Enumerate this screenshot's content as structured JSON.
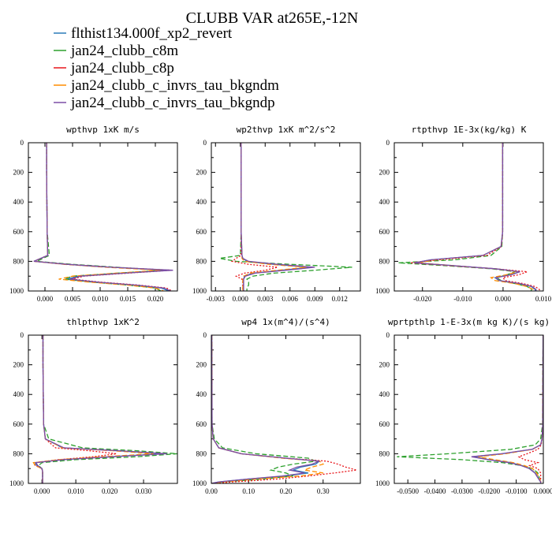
{
  "figure": {
    "title": "CLUBB VAR at265E,-12N"
  },
  "legend": [
    {
      "name": "flthist134.000f_xp2_revert",
      "color": "#2b7bb9"
    },
    {
      "name": "jan24_clubb_c8m",
      "color": "#2ca02c"
    },
    {
      "name": "jan24_clubb_c8p",
      "color": "#e8161b"
    },
    {
      "name": "jan24_clubb_c_invrs_tau_bkgndm",
      "color": "#ff8c00"
    },
    {
      "name": "jan24_clubb_c_invrs_tau_bkgndp",
      "color": "#7b4ea6"
    }
  ],
  "chart_data": [
    {
      "type": "line",
      "title": "wpthvp  1xK m/s",
      "ylim": [
        1000,
        0
      ],
      "yticks": [
        "0",
        "200",
        "400",
        "600",
        "800",
        "1000"
      ],
      "xlim": [
        -0.003,
        0.024
      ],
      "xticks": [
        {
          "v": 0,
          "l": "0.000"
        },
        {
          "v": 0.005,
          "l": "0.005"
        },
        {
          "v": 0.01,
          "l": "0.010"
        },
        {
          "v": 0.015,
          "l": "0.015"
        },
        {
          "v": 0.02,
          "l": "0.020"
        }
      ],
      "y": [
        0,
        200,
        600,
        760,
        800,
        820,
        840,
        860,
        880,
        900,
        920,
        940,
        960,
        980,
        1000
      ],
      "series": [
        {
          "values": [
            0.0003,
            0.0003,
            0.0004,
            0.0005,
            -0.002,
            0.004,
            0.012,
            0.0225,
            0.014,
            0.006,
            0.004,
            0.009,
            0.016,
            0.021,
            0.0225
          ]
        },
        {
          "values": [
            0.0003,
            0.0003,
            0.0004,
            0.0008,
            -0.0015,
            0.005,
            0.013,
            0.0215,
            0.013,
            0.005,
            0.0035,
            0.0085,
            0.015,
            0.02,
            0.021
          ]
        },
        {
          "values": [
            0.0003,
            0.0003,
            0.0004,
            0.0005,
            -0.002,
            0.004,
            0.012,
            0.023,
            0.015,
            0.007,
            0.005,
            0.01,
            0.017,
            0.022,
            0.023
          ]
        },
        {
          "values": [
            0.0003,
            0.0003,
            0.0004,
            0.0005,
            -0.002,
            0.0035,
            0.011,
            0.021,
            0.013,
            0.005,
            0.0025,
            0.008,
            0.015,
            0.02,
            0.0215
          ]
        },
        {
          "values": [
            0.0003,
            0.0003,
            0.0004,
            0.0005,
            -0.002,
            0.004,
            0.012,
            0.0232,
            0.0145,
            0.0065,
            0.0045,
            0.0095,
            0.0165,
            0.0215,
            0.0228
          ]
        }
      ]
    },
    {
      "type": "line",
      "title": "wp2thvp  1xK m^2/s^2",
      "ylim": [
        1000,
        0
      ],
      "yticks": [
        "0",
        "200",
        "400",
        "600",
        "800",
        "1000"
      ],
      "xlim": [
        -0.0035,
        0.0145
      ],
      "xticks": [
        {
          "v": -0.003,
          "l": "-0.003"
        },
        {
          "v": 0,
          "l": "0.000"
        },
        {
          "v": 0.003,
          "l": "0.003"
        },
        {
          "v": 0.006,
          "l": "0.006"
        },
        {
          "v": 0.009,
          "l": "0.009"
        },
        {
          "v": 0.012,
          "l": "0.012"
        }
      ],
      "y": [
        0,
        200,
        600,
        760,
        780,
        800,
        820,
        840,
        860,
        880,
        900,
        920,
        940,
        960,
        980,
        1000
      ],
      "series": [
        {
          "values": [
            0.0001,
            0.0001,
            0.0001,
            0.0002,
            0.0003,
            0.0008,
            0.004,
            0.0085,
            0.005,
            0.0015,
            0.0005,
            0.0004,
            0.0004,
            0.0004,
            0.0004,
            0.0004
          ]
        },
        {
          "values": [
            0.0001,
            0.0001,
            0.0001,
            0.0,
            -0.0025,
            -0.0005,
            0.006,
            0.0135,
            0.009,
            0.004,
            0.0015,
            0.0008,
            0.001,
            0.001,
            0.0008,
            0.0008
          ]
        },
        {
          "values": [
            0.0001,
            0.0001,
            0.0001,
            0.0001,
            -0.0005,
            -0.001,
            0.001,
            0.0045,
            0.003,
            0.0005,
            -0.0005,
            0.0002,
            0.0003,
            0.0003,
            0.0003,
            0.0003
          ]
        },
        {
          "values": [
            0.0001,
            0.0001,
            0.0001,
            0.0002,
            0.0002,
            0.0005,
            0.0035,
            0.008,
            0.0045,
            0.0012,
            0.0004,
            0.0003,
            0.0003,
            0.0003,
            0.0003,
            0.0003
          ]
        },
        {
          "values": [
            0.0001,
            0.0001,
            0.0001,
            0.0002,
            0.0003,
            0.001,
            0.0045,
            0.009,
            0.0055,
            0.0018,
            0.0006,
            0.0004,
            0.0004,
            0.0004,
            0.0004,
            0.0004
          ]
        }
      ]
    },
    {
      "type": "line",
      "title": "rtpthvp   1E-3x(kg/kg) K",
      "ylim": [
        1000,
        0
      ],
      "yticks": [
        "0",
        "200",
        "400",
        "600",
        "800",
        "1000"
      ],
      "xlim": [
        -0.027,
        0.01
      ],
      "xticks": [
        {
          "v": -0.02,
          "l": "-0.020"
        },
        {
          "v": -0.01,
          "l": "-0.010"
        },
        {
          "v": 0,
          "l": "0.000"
        },
        {
          "v": 0.01,
          "l": "0.010"
        }
      ],
      "y": [
        0,
        200,
        600,
        700,
        760,
        790,
        810,
        830,
        850,
        870,
        890,
        910,
        930,
        950,
        970,
        990,
        1000
      ],
      "series": [
        {
          "values": [
            -0.0001,
            -0.0001,
            -0.0001,
            -0.0005,
            -0.005,
            -0.018,
            -0.022,
            -0.012,
            -0.002,
            0.004,
            0.002,
            -0.002,
            -0.001,
            0.004,
            0.007,
            0.008,
            0.008
          ]
        },
        {
          "values": [
            -0.0001,
            -0.0001,
            -0.0001,
            -0.0003,
            -0.003,
            -0.012,
            -0.026,
            -0.014,
            -0.003,
            0.003,
            0.001,
            -0.0015,
            -0.0005,
            0.003,
            0.006,
            0.007,
            0.007
          ]
        },
        {
          "values": [
            -0.0001,
            -0.0001,
            -0.0001,
            -0.0004,
            -0.004,
            -0.016,
            -0.023,
            -0.013,
            -0.002,
            0.006,
            0.004,
            0.0,
            0.0005,
            0.005,
            0.008,
            0.009,
            0.0095
          ]
        },
        {
          "values": [
            -0.0001,
            -0.0001,
            -0.0001,
            -0.0005,
            -0.005,
            -0.017,
            -0.021,
            -0.012,
            -0.002,
            0.0035,
            0.001,
            -0.003,
            -0.002,
            0.003,
            0.006,
            0.0075,
            0.0075
          ]
        },
        {
          "values": [
            -0.0001,
            -0.0001,
            -0.0001,
            -0.0005,
            -0.005,
            -0.018,
            -0.022,
            -0.012,
            -0.002,
            0.0042,
            0.0022,
            -0.0018,
            -0.0008,
            0.0042,
            0.0072,
            0.0082,
            0.0082
          ]
        }
      ]
    },
    {
      "type": "line",
      "title": "thlpthvp   1xK^2",
      "ylim": [
        1000,
        0
      ],
      "yticks": [
        "0",
        "200",
        "400",
        "600",
        "800",
        "1000"
      ],
      "xlim": [
        -0.004,
        0.04
      ],
      "xticks": [
        {
          "v": 0,
          "l": "0.000"
        },
        {
          "v": 0.01,
          "l": "0.010"
        },
        {
          "v": 0.02,
          "l": "0.020"
        },
        {
          "v": 0.03,
          "l": "0.030"
        }
      ],
      "y": [
        0,
        200,
        600,
        700,
        760,
        780,
        800,
        820,
        840,
        860,
        880,
        900,
        920,
        940,
        960,
        980,
        1000
      ],
      "series": [
        {
          "values": [
            0.0003,
            0.0003,
            0.0005,
            0.001,
            0.006,
            0.022,
            0.036,
            0.02,
            0.006,
            -0.002,
            -0.0015,
            0.0,
            0.0002,
            0.0002,
            0.0002,
            0.0002,
            0.0002
          ]
        },
        {
          "values": [
            0.0003,
            0.0003,
            0.0005,
            0.002,
            0.012,
            0.028,
            0.04,
            0.028,
            0.01,
            0.0,
            -0.001,
            0.0,
            0.0002,
            0.0002,
            0.0002,
            0.0002,
            0.0002
          ]
        },
        {
          "values": [
            0.0003,
            0.0003,
            0.0005,
            0.001,
            0.004,
            0.014,
            0.022,
            0.015,
            0.005,
            -0.002,
            -0.002,
            0.0,
            0.0002,
            0.0002,
            0.0002,
            0.0002,
            0.0002
          ]
        },
        {
          "values": [
            0.0003,
            0.0003,
            0.0005,
            0.001,
            0.006,
            0.021,
            0.033,
            0.018,
            0.005,
            -0.0025,
            -0.002,
            0.0,
            0.0002,
            0.0002,
            0.0002,
            0.0002,
            0.0002
          ]
        },
        {
          "values": [
            0.0003,
            0.0003,
            0.0005,
            0.001,
            0.0065,
            0.023,
            0.037,
            0.021,
            0.0065,
            -0.0018,
            -0.0012,
            0.0,
            0.0002,
            0.0002,
            0.0002,
            0.0002,
            0.0002
          ]
        }
      ]
    },
    {
      "type": "line",
      "title": "wp4   1x(m^4)/(s^4)",
      "ylim": [
        1000,
        0
      ],
      "yticks": [
        "0",
        "200",
        "400",
        "600",
        "800",
        "1000"
      ],
      "xlim": [
        0,
        0.4
      ],
      "xticks": [
        {
          "v": 0,
          "l": "0.00"
        },
        {
          "v": 0.1,
          "l": "0.10"
        },
        {
          "v": 0.2,
          "l": "0.20"
        },
        {
          "v": 0.3,
          "l": "0.30"
        }
      ],
      "y": [
        0,
        600,
        700,
        760,
        800,
        830,
        850,
        870,
        890,
        910,
        930,
        950,
        970,
        990,
        1000
      ],
      "series": [
        {
          "values": [
            0.001,
            0.002,
            0.005,
            0.02,
            0.08,
            0.2,
            0.29,
            0.28,
            0.24,
            0.22,
            0.26,
            0.2,
            0.1,
            0.02,
            0.0
          ]
        },
        {
          "values": [
            0.001,
            0.002,
            0.008,
            0.03,
            0.12,
            0.26,
            0.28,
            0.22,
            0.18,
            0.16,
            0.2,
            0.22,
            0.14,
            0.03,
            0.0
          ]
        },
        {
          "values": [
            0.001,
            0.002,
            0.005,
            0.02,
            0.08,
            0.2,
            0.31,
            0.34,
            0.36,
            0.39,
            0.33,
            0.26,
            0.18,
            0.06,
            0.0
          ]
        },
        {
          "values": [
            0.001,
            0.002,
            0.005,
            0.02,
            0.08,
            0.19,
            0.29,
            0.3,
            0.27,
            0.25,
            0.3,
            0.24,
            0.12,
            0.03,
            0.0
          ]
        },
        {
          "values": [
            0.001,
            0.002,
            0.005,
            0.02,
            0.08,
            0.2,
            0.29,
            0.27,
            0.23,
            0.21,
            0.25,
            0.19,
            0.1,
            0.02,
            0.0
          ]
        }
      ]
    },
    {
      "type": "line",
      "title": "wprtpthlp   1-E-3x(m kg K)/(s kg)",
      "ylim": [
        1000,
        0
      ],
      "yticks": [
        "0",
        "200",
        "400",
        "600",
        "800",
        "1000"
      ],
      "xlim": [
        -0.055,
        0.0
      ],
      "xticks": [
        {
          "v": -0.05,
          "l": "-0.0500"
        },
        {
          "v": -0.04,
          "l": "-0.0400"
        },
        {
          "v": -0.03,
          "l": "-0.0300"
        },
        {
          "v": -0.02,
          "l": "-0.0200"
        },
        {
          "v": -0.01,
          "l": "-0.0100"
        },
        {
          "v": 0,
          "l": "0.0000"
        }
      ],
      "y": [
        0,
        600,
        700,
        740,
        770,
        800,
        820,
        840,
        860,
        880,
        900,
        930,
        960,
        990,
        1000
      ],
      "series": [
        {
          "values": [
            -0.0001,
            -0.0002,
            -0.0005,
            -0.001,
            -0.004,
            -0.015,
            -0.026,
            -0.02,
            -0.012,
            -0.008,
            -0.005,
            -0.003,
            -0.002,
            -0.001,
            -0.001
          ]
        },
        {
          "values": [
            -0.0001,
            -0.0003,
            -0.001,
            -0.003,
            -0.012,
            -0.035,
            -0.054,
            -0.03,
            -0.015,
            -0.008,
            -0.004,
            -0.002,
            -0.0015,
            -0.001,
            -0.001
          ]
        },
        {
          "values": [
            -0.0001,
            -0.0002,
            -0.0005,
            -0.0008,
            -0.002,
            -0.006,
            -0.009,
            -0.007,
            -0.002,
            -0.005,
            -0.002,
            -0.001,
            -0.001,
            -0.001,
            -0.001
          ]
        },
        {
          "values": [
            -0.0001,
            -0.0002,
            -0.0005,
            -0.001,
            -0.004,
            -0.014,
            -0.024,
            -0.018,
            -0.011,
            -0.007,
            -0.004,
            -0.0025,
            -0.0015,
            -0.001,
            -0.001
          ]
        },
        {
          "values": [
            -0.0001,
            -0.0002,
            -0.0005,
            -0.001,
            -0.0042,
            -0.0155,
            -0.0265,
            -0.0205,
            -0.0125,
            -0.0082,
            -0.0052,
            -0.0031,
            -0.0021,
            -0.001,
            -0.001
          ]
        }
      ]
    }
  ]
}
